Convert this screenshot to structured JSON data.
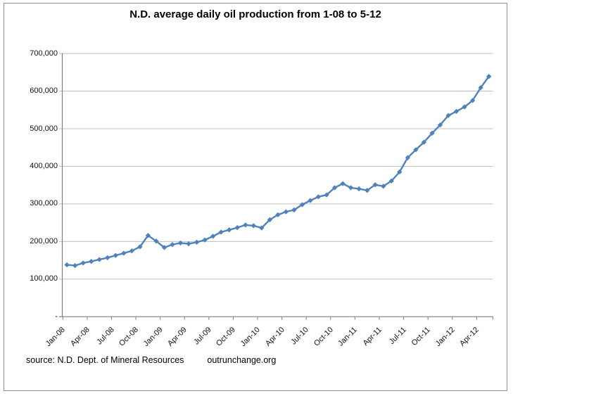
{
  "chart": {
    "title": "N.D. average daily oil production from 1-08 to 5-12",
    "source_label": "source: N.D. Dept. of Mineral Resources",
    "site_label": "outrunchange.org"
  },
  "chart_data": {
    "type": "line",
    "title": "N.D. average daily oil production from 1-08 to 5-12",
    "xlabel": "",
    "ylabel": "",
    "ylim": [
      0,
      700000
    ],
    "grid": "horizontal",
    "legend": "none",
    "marker": "diamond",
    "colors": {
      "series": "#4F81BD",
      "grid": "#BFBFBF",
      "axis": "#808080",
      "text": "#111111"
    },
    "y_tick_labels": [
      "700,000",
      "600,000",
      "500,000",
      "400,000",
      "300,000",
      "200,000",
      "100,000",
      "-"
    ],
    "x_axis_tick_labels": [
      "Jan-08",
      "Apr-08",
      "Jul-08",
      "Oct-08",
      "Jan-09",
      "Apr-09",
      "Jul-09",
      "Oct-09",
      "Jan-10",
      "Apr-10",
      "Jul-10",
      "Oct-10",
      "Jan-11",
      "Apr-11",
      "Jul-11",
      "Oct-11",
      "Jan-12",
      "Apr-12"
    ],
    "x": [
      "Jan-08",
      "Feb-08",
      "Mar-08",
      "Apr-08",
      "May-08",
      "Jun-08",
      "Jul-08",
      "Aug-08",
      "Sep-08",
      "Oct-08",
      "Nov-08",
      "Dec-08",
      "Jan-09",
      "Feb-09",
      "Mar-09",
      "Apr-09",
      "May-09",
      "Jun-09",
      "Jul-09",
      "Aug-09",
      "Sep-09",
      "Oct-09",
      "Nov-09",
      "Dec-09",
      "Jan-10",
      "Feb-10",
      "Mar-10",
      "Apr-10",
      "May-10",
      "Jun-10",
      "Jul-10",
      "Aug-10",
      "Sep-10",
      "Oct-10",
      "Nov-10",
      "Dec-10",
      "Jan-11",
      "Feb-11",
      "Mar-11",
      "Apr-11",
      "May-11",
      "Jun-11",
      "Jul-11",
      "Aug-11",
      "Sep-11",
      "Oct-11",
      "Nov-11",
      "Dec-11",
      "Jan-12",
      "Feb-12",
      "Mar-12",
      "Apr-12",
      "May-12"
    ],
    "values": [
      138000,
      136000,
      143000,
      147000,
      152000,
      157000,
      163000,
      169000,
      175000,
      186000,
      216000,
      201000,
      184000,
      192000,
      196000,
      194000,
      198000,
      204000,
      214000,
      225000,
      231000,
      237000,
      244000,
      242000,
      236000,
      258000,
      271000,
      279000,
      284000,
      298000,
      309000,
      319000,
      324000,
      343000,
      354000,
      343000,
      340000,
      336000,
      351000,
      347000,
      361000,
      385000,
      423000,
      444000,
      464000,
      488000,
      510000,
      535000,
      546000,
      558000,
      575000,
      609000,
      639000
    ]
  }
}
